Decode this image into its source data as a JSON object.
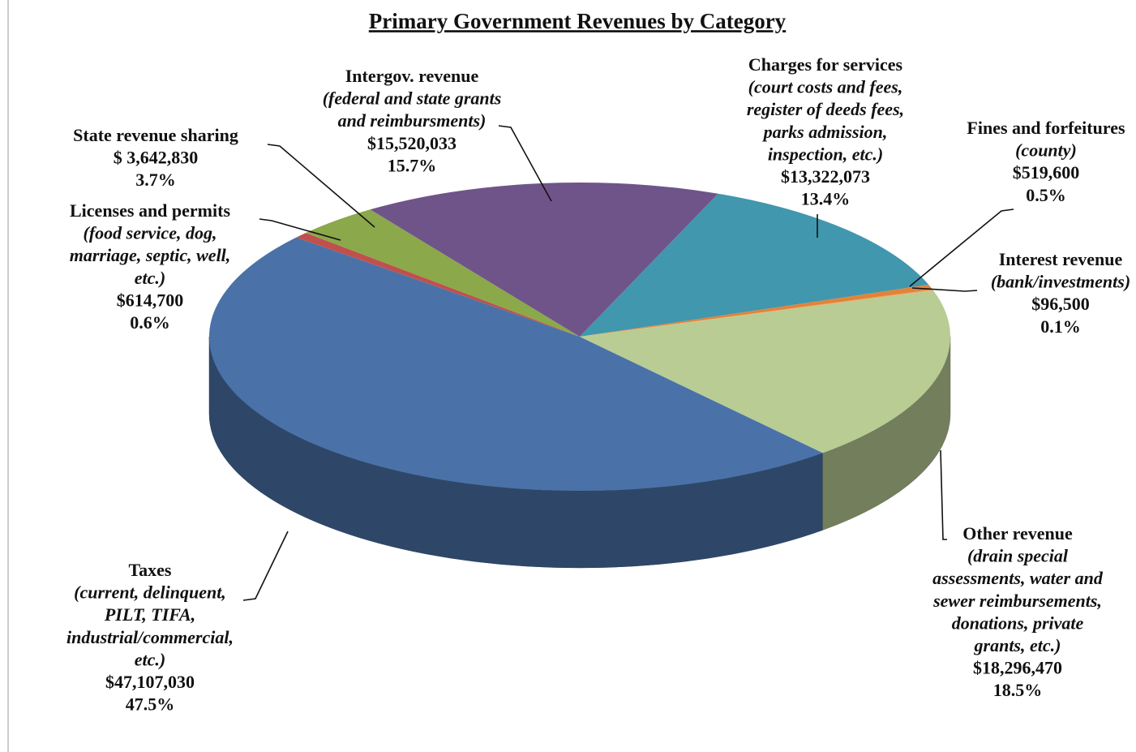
{
  "chart_data": {
    "type": "pie3d",
    "title": "Primary Government Revenues by Category",
    "categories": [
      "Taxes",
      "Licenses and permits",
      "State revenue sharing",
      "Intergov. revenue",
      "Charges for services",
      "Fines and forfeitures",
      "Interest revenue",
      "Other revenue"
    ],
    "descriptions": [
      [
        "(current, delinquent,",
        "PILT, TIFA,",
        "industrial/commercial,",
        "etc.)"
      ],
      [
        "(food service, dog,",
        "marriage, septic, well,",
        "etc.)"
      ],
      [],
      [
        "(federal and state grants",
        "and reimbursments)"
      ],
      [
        "(court costs and fees,",
        "register of deeds fees,",
        "parks admission,",
        "inspection, etc.)"
      ],
      [
        "(county)"
      ],
      [
        "(bank/investments)"
      ],
      [
        "(drain special",
        "assessments, water and",
        "sewer reimbursements,",
        "donations, private",
        "grants, etc.)"
      ]
    ],
    "values": [
      47107030,
      614700,
      3642830,
      15520033,
      13322073,
      519600,
      96500,
      18296470
    ],
    "value_labels": [
      "$47,107,030",
      "$614,700",
      "$ 3,642,830",
      "$15,520,033",
      "$13,322,073",
      "$519,600",
      "$96,500",
      "$18,296,470"
    ],
    "percent_labels": [
      "47.5%",
      "0.6%",
      "3.7%",
      "15.7%",
      "13.4%",
      "0.5%",
      "0.1%",
      "18.5%"
    ],
    "colors": [
      "#4a72a8",
      "#c0504d",
      "#8ba84a",
      "#6f548a",
      "#4197ad",
      "#e0843a",
      "#f0a058",
      "#b8cc94"
    ]
  }
}
